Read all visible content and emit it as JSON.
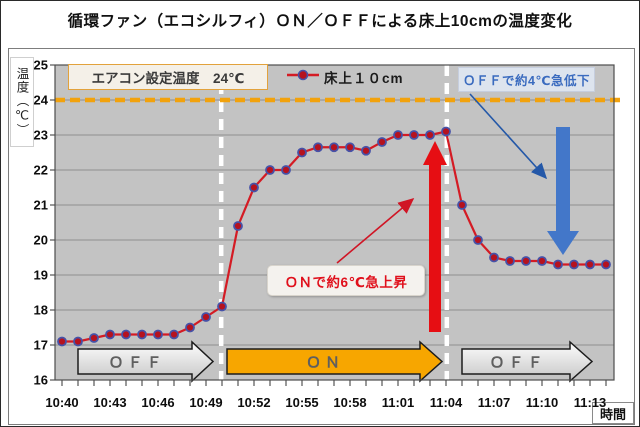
{
  "title": "循環ファン（エコシルフィ）ＯＮ／ＯＦＦによる床上10cmの温度変化",
  "axes": {
    "y_title": "温度（℃）",
    "x_title": "時間"
  },
  "legend": {
    "setpoint_label": "エアコン設定温度　24℃",
    "series_label": "床上１０cm"
  },
  "annotations": {
    "on_rise": "ＯＮで約6℃急上昇",
    "off_drop": "ＯＦＦで約4℃急低下"
  },
  "phases": [
    {
      "label": "ＯＦＦ"
    },
    {
      "label": "ＯＮ"
    },
    {
      "label": "ＯＦＦ"
    }
  ],
  "colors": {
    "plot_background": "#c3c3c3",
    "gridline": "#8f8f8f",
    "plot_border": "#4d4d4d",
    "setpoint_dash": "#f2a20d",
    "series_line": "#d41b24",
    "marker_fill": "#b5121f",
    "marker_ring": "#4652a8",
    "phase_divider": "#ffffff",
    "thick_up_arrow": "#e60e13",
    "thick_down_arrow": "#4377c9",
    "thin_red_arrow": "#d01525",
    "thin_blue_arrow": "#2458a8",
    "off_arrow_fill_top": "#fdfdfd",
    "off_arrow_fill_bottom": "#c6c6c6",
    "on_arrow_fill": "#f7a600",
    "block_arrow_stroke": "#1c1c1c"
  },
  "chart_data": {
    "type": "line",
    "title": "循環ファン（エコシルフィ）ＯＮ／ＯＦＦによる床上10cmの温度変化",
    "xlabel": "時間",
    "ylabel": "温度（℃）",
    "ylim": [
      16,
      25
    ],
    "y_ticks": [
      16,
      17,
      18,
      19,
      20,
      21,
      22,
      23,
      24,
      25
    ],
    "grid": true,
    "x_start_time": "10:40",
    "x_interval_minutes": 1,
    "x_tick_labels": [
      "10:40",
      "10:43",
      "10:46",
      "10:49",
      "10:52",
      "10:55",
      "10:58",
      "11:01",
      "11:04",
      "11:07",
      "11:10",
      "11:13"
    ],
    "x_tick_step_minutes": 3,
    "series": [
      {
        "name": "床上１０cm",
        "values": [
          17.1,
          17.1,
          17.2,
          17.3,
          17.3,
          17.3,
          17.3,
          17.3,
          17.5,
          17.8,
          18.1,
          20.4,
          21.5,
          22.0,
          22.0,
          22.5,
          22.65,
          22.65,
          22.65,
          22.55,
          22.8,
          23.0,
          23.0,
          23.0,
          23.1,
          21.0,
          20.0,
          19.5,
          19.4,
          19.4,
          19.4,
          19.3,
          19.3,
          19.3,
          19.3
        ]
      }
    ],
    "reference_line": {
      "label": "エアコン設定温度　24℃",
      "value": 24,
      "style": "dashed"
    },
    "phase_change_minutes": [
      9.95,
      24.05
    ],
    "phase_bands": [
      {
        "label": "ＯＦＦ",
        "from_minute": 1,
        "to_minute": 9.5
      },
      {
        "label": "ＯＮ",
        "from_minute": 10.3,
        "to_minute": 23.8
      },
      {
        "label": "ＯＦＦ",
        "from_minute": 25,
        "to_minute": 33.2
      }
    ],
    "legend_position": "top"
  }
}
